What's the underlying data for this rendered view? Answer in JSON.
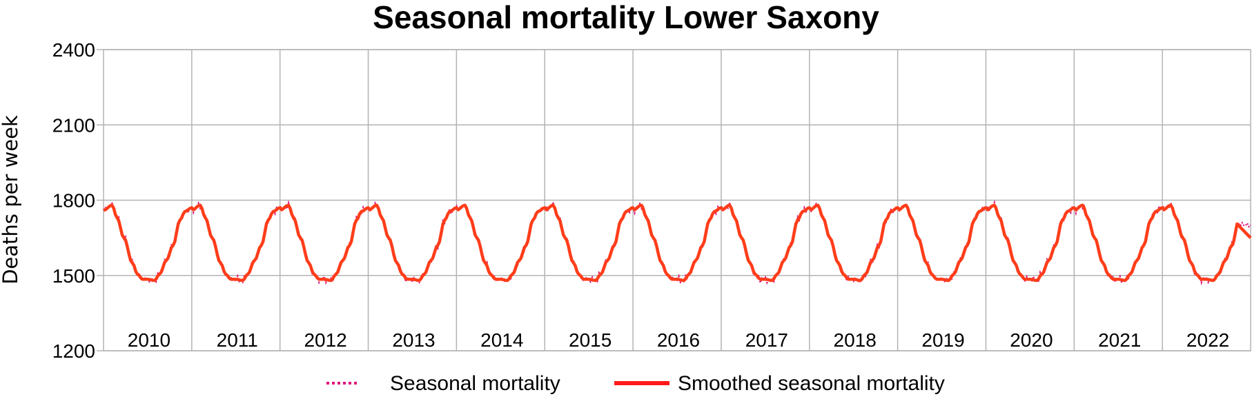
{
  "chart_data": {
    "type": "line",
    "title": "Seasonal mortality Lower Saxony",
    "xlabel": "",
    "ylabel": "Deaths per week",
    "ylim": [
      1200,
      2400
    ],
    "yticks": [
      "2400",
      "2100",
      "1800",
      "1500",
      "1200"
    ],
    "ytick_values": [
      2400,
      2100,
      1800,
      1500,
      1200
    ],
    "categories": [
      "2010",
      "2011",
      "2012",
      "2013",
      "2014",
      "2015",
      "2016",
      "2017",
      "2018",
      "2019",
      "2020",
      "2021",
      "2022"
    ],
    "grid": true,
    "legend_position": "bottom",
    "end_week": 52,
    "annual_pattern": [
      {
        "week": 0,
        "value": 1760
      },
      {
        "week": 5,
        "value": 1780
      },
      {
        "week": 8,
        "value": 1730
      },
      {
        "week": 12,
        "value": 1650
      },
      {
        "week": 17,
        "value": 1550
      },
      {
        "week": 20,
        "value": 1505
      },
      {
        "week": 23,
        "value": 1485
      },
      {
        "week": 26,
        "value": 1485
      },
      {
        "week": 30,
        "value": 1480
      },
      {
        "week": 33,
        "value": 1505
      },
      {
        "week": 37,
        "value": 1560
      },
      {
        "week": 41,
        "value": 1620
      },
      {
        "week": 45,
        "value": 1720
      },
      {
        "week": 48,
        "value": 1755
      },
      {
        "week": 52,
        "value": 1770
      }
    ],
    "series": [
      {
        "name": "Seasonal mortality",
        "color": "#e0157a",
        "style": "dotted",
        "end_value": 1700
      },
      {
        "name": "Smoothed seasonal mortality",
        "color": "#ff3d1a",
        "legend_color": "#ff1a1a",
        "style": "solid",
        "end_value": 1650
      }
    ]
  }
}
